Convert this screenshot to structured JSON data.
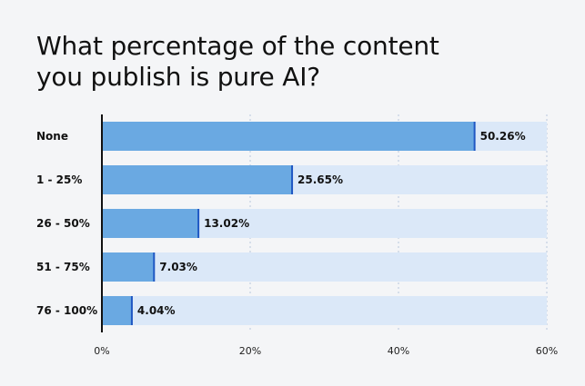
{
  "title_lines": [
    "What percentage of the content",
    "you publish is pure AI?"
  ],
  "colors": {
    "bar": "#6aa9e2",
    "track": "#dbe8f8",
    "bar_edge": "#1f57c3",
    "axis": "#111111",
    "grid": "#b7c8dc",
    "background": "#f4f5f7"
  },
  "chart_data": {
    "type": "bar",
    "orientation": "horizontal",
    "title": "What percentage of the content you publish is pure AI?",
    "categories": [
      "None",
      "1 - 25%",
      "26 - 50%",
      "51 - 75%",
      "76 - 100%"
    ],
    "values": [
      50.26,
      25.65,
      13.02,
      7.03,
      4.04
    ],
    "value_labels": [
      "50.26%",
      "25.65%",
      "13.02%",
      "7.03%",
      "4.04%"
    ],
    "xlim": [
      0,
      60
    ],
    "xticks": [
      0,
      20,
      40,
      60
    ],
    "xtick_labels": [
      "0%",
      "20%",
      "40%",
      "60%"
    ],
    "grid": "vertical dashed",
    "xlabel": "",
    "ylabel": ""
  }
}
